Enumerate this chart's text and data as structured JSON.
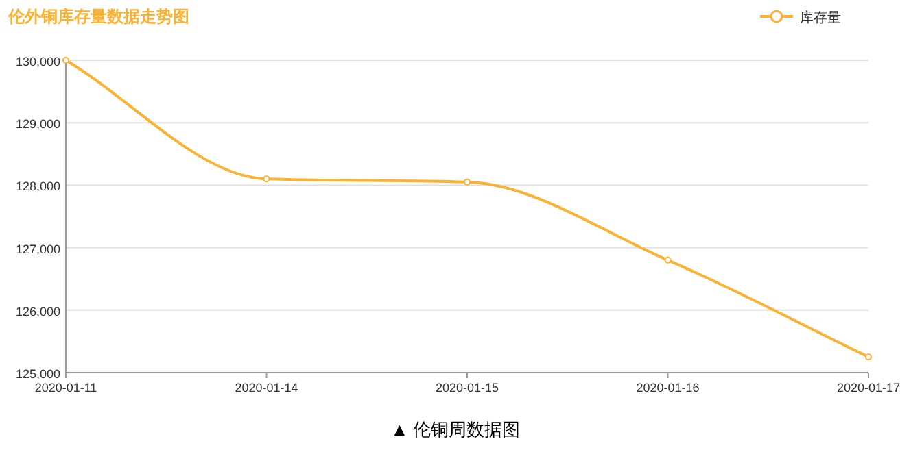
{
  "chart_data": {
    "type": "line",
    "title": "伦外铜库存量数据走势图",
    "categories": [
      "2020-01-11",
      "2020-01-14",
      "2020-01-15",
      "2020-01-16",
      "2020-01-17"
    ],
    "series": [
      {
        "name": "库存量",
        "color": "#f9b233",
        "values": [
          130000,
          128100,
          128050,
          126800,
          125250
        ]
      }
    ],
    "ylim": [
      125000,
      130000
    ],
    "yticks": [
      {
        "value": 125000,
        "label": "125,000"
      },
      {
        "value": 126000,
        "label": "126,000"
      },
      {
        "value": 127000,
        "label": "127,000"
      },
      {
        "value": 128000,
        "label": "128,000"
      },
      {
        "value": 129000,
        "label": "129,000"
      },
      {
        "value": 130000,
        "label": "130,000"
      }
    ],
    "grid": "y",
    "legend": "top right",
    "marker": "circle",
    "annotations": [
      "▲ 伦铜周数据图"
    ]
  }
}
